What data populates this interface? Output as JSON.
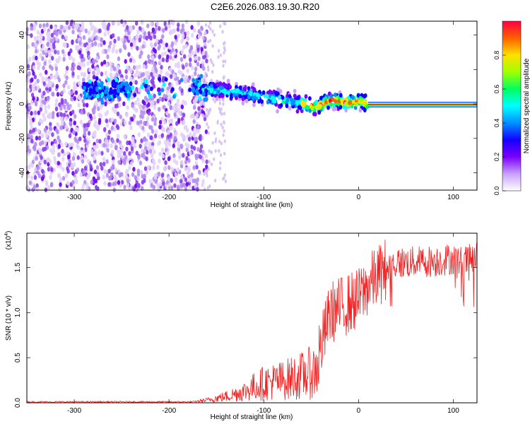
{
  "title": "C2E6.2026.083.19.30.R20",
  "chart_data": [
    {
      "type": "heatmap",
      "xlabel": "Height of straight line (km)",
      "ylabel": "Frequency (Hz)",
      "xlim": [
        -350,
        125
      ],
      "ylim": [
        -50,
        48
      ],
      "xticks": [
        -300,
        -200,
        -100,
        0,
        100
      ],
      "yticks": [
        -40,
        -20,
        0,
        20,
        40
      ],
      "colorbar": {
        "label": "Normalized spectral amplitude",
        "range": [
          0,
          1
        ],
        "ticks": [
          "0.0",
          "0.2",
          "0.4",
          "0.6",
          "0.8"
        ],
        "colors": [
          "#ffffff",
          "#c8a0ff",
          "#7a00ff",
          "#1400ff",
          "#0090ff",
          "#00ffff",
          "#00ff60",
          "#a0ff00",
          "#ffe000",
          "#ff6000",
          "#ff0040"
        ]
      },
      "ridge": {
        "x": [
          -280,
          -170,
          -150,
          -130,
          -110,
          -90,
          -70,
          -55,
          -45,
          -35,
          -25,
          -15,
          -5,
          0,
          10,
          125
        ],
        "y": [
          8,
          10,
          8,
          7,
          5,
          3,
          1,
          0,
          -2,
          1,
          2,
          1,
          1,
          2,
          0,
          0
        ]
      },
      "noise_region": [
        -350,
        -160
      ]
    },
    {
      "type": "line",
      "xlabel": "Height of straight line (km)",
      "ylabel": "SNR (10 * v/v)",
      "y_scale_label": "(x10",
      "y_scale_exponent": "4",
      "xlim": [
        -350,
        125
      ],
      "ylim": [
        0,
        1.88
      ],
      "xticks": [
        -300,
        -200,
        -100,
        0,
        100
      ],
      "yticks": [
        "0.0",
        "0.5",
        "1.0",
        "1.5"
      ],
      "series": [
        {
          "color": "#ee2020",
          "x": [
            -350,
            -250,
            -175,
            -160,
            -140,
            -120,
            -110,
            -100,
            -80,
            -60,
            -45,
            -40,
            -30,
            -20,
            -10,
            0,
            10,
            20,
            30,
            40,
            60,
            80,
            100,
            110,
            125
          ],
          "y": [
            0.01,
            0.01,
            0.01,
            0.03,
            0.07,
            0.13,
            0.18,
            0.22,
            0.25,
            0.3,
            0.35,
            0.6,
            1.0,
            1.05,
            1.1,
            1.15,
            1.3,
            1.4,
            1.5,
            1.55,
            1.56,
            1.57,
            1.6,
            1.55,
            1.62
          ]
        }
      ]
    }
  ]
}
